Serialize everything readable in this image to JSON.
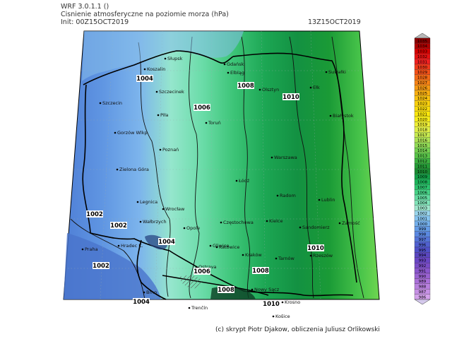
{
  "header": {
    "model": "WRF 3.0.1.1 ()",
    "title": "Cisnienie atmosferyczne na poziomie morza (hPa)",
    "init": "Init: 00Z15OCT2019",
    "valid": "13Z15OCT2019"
  },
  "cities": [
    {
      "name": "Słupsk"
    },
    {
      "name": "Gdańsk"
    },
    {
      "name": "Koszalin"
    },
    {
      "name": "Elbląg"
    },
    {
      "name": "Olsztyn"
    },
    {
      "name": "Suwałki"
    },
    {
      "name": "Ełk"
    },
    {
      "name": "Szczecinek"
    },
    {
      "name": "Szczecin"
    },
    {
      "name": "Piła"
    },
    {
      "name": "Białystok"
    },
    {
      "name": "Toruń"
    },
    {
      "name": "Gorzów Wlkp"
    },
    {
      "name": "Poznań"
    },
    {
      "name": "Warszawa"
    },
    {
      "name": "Zielona Góra"
    },
    {
      "name": "Łódź"
    },
    {
      "name": "Radom"
    },
    {
      "name": "Legnica"
    },
    {
      "name": "Wrocław"
    },
    {
      "name": "Lublin"
    },
    {
      "name": "Kielce"
    },
    {
      "name": "Zamość"
    },
    {
      "name": "Sandomierz"
    },
    {
      "name": "Wałbrzych"
    },
    {
      "name": "Częstochowa"
    },
    {
      "name": "Opole"
    },
    {
      "name": "Hradec K."
    },
    {
      "name": "Gliwice"
    },
    {
      "name": "Katowice"
    },
    {
      "name": "Kraków"
    },
    {
      "name": "Tarnów"
    },
    {
      "name": "Rzeszów"
    },
    {
      "name": "Praha"
    },
    {
      "name": "Ostrava"
    },
    {
      "name": "Brno"
    },
    {
      "name": "Nowy Sącz"
    },
    {
      "name": "Krosno"
    },
    {
      "name": "Trenčín"
    },
    {
      "name": "Košice"
    }
  ],
  "isobar_labels": [
    "1004",
    "1006",
    "1008",
    "1010",
    "1002",
    "1002",
    "1004",
    "1006",
    "1008",
    "1010",
    "1008",
    "1002",
    "1004",
    "1010"
  ],
  "legend": {
    "values": [
      "1035",
      "1034",
      "1033",
      "1032",
      "1031",
      "1030",
      "1029",
      "1028",
      "1027",
      "1026",
      "1025",
      "1024",
      "1023",
      "1022",
      "1021",
      "1020",
      "1019",
      "1018",
      "1017",
      "1016",
      "1015",
      "1014",
      "1013",
      "1012",
      "1011",
      "1010",
      "1009",
      "1008",
      "1007",
      "1006",
      "1005",
      "1004",
      "1003",
      "1002",
      "1001",
      "1000",
      "999",
      "998",
      "997",
      "996",
      "995",
      "994",
      "993",
      "992",
      "991",
      "990",
      "989",
      "988",
      "987",
      "986"
    ],
    "colors": [
      "#8c0000",
      "#b00000",
      "#d40000",
      "#e81010",
      "#f02020",
      "#f23a1a",
      "#f45018",
      "#f56a16",
      "#f68214",
      "#f79a12",
      "#f8ae10",
      "#f9c20e",
      "#f9d00c",
      "#fadc0c",
      "#fae60c",
      "#f8ee18",
      "#f0f034",
      "#e0f048",
      "#c8ec50",
      "#aee455",
      "#92dc55",
      "#74d250",
      "#58c448",
      "#3cb240",
      "#249c36",
      "#1a8c32",
      "#12a046",
      "#1cb45a",
      "#2cc46e",
      "#46d286",
      "#62dca0",
      "#80e4b8",
      "#9ee6cc",
      "#9ad6ec",
      "#86c4f0",
      "#74b0ec",
      "#649ce6",
      "#5a88e0",
      "#5474d8",
      "#5060d0",
      "#5050c8",
      "#5a46c0",
      "#6a46c4",
      "#7a4cc8",
      "#8a56cc",
      "#9a62d2",
      "#aa70d8",
      "#b880de",
      "#c690e4",
      "#d4a2ec"
    ]
  },
  "credit": "(c) skrypt Piotr Djakow, obliczenia Juliusz Orlikowski"
}
